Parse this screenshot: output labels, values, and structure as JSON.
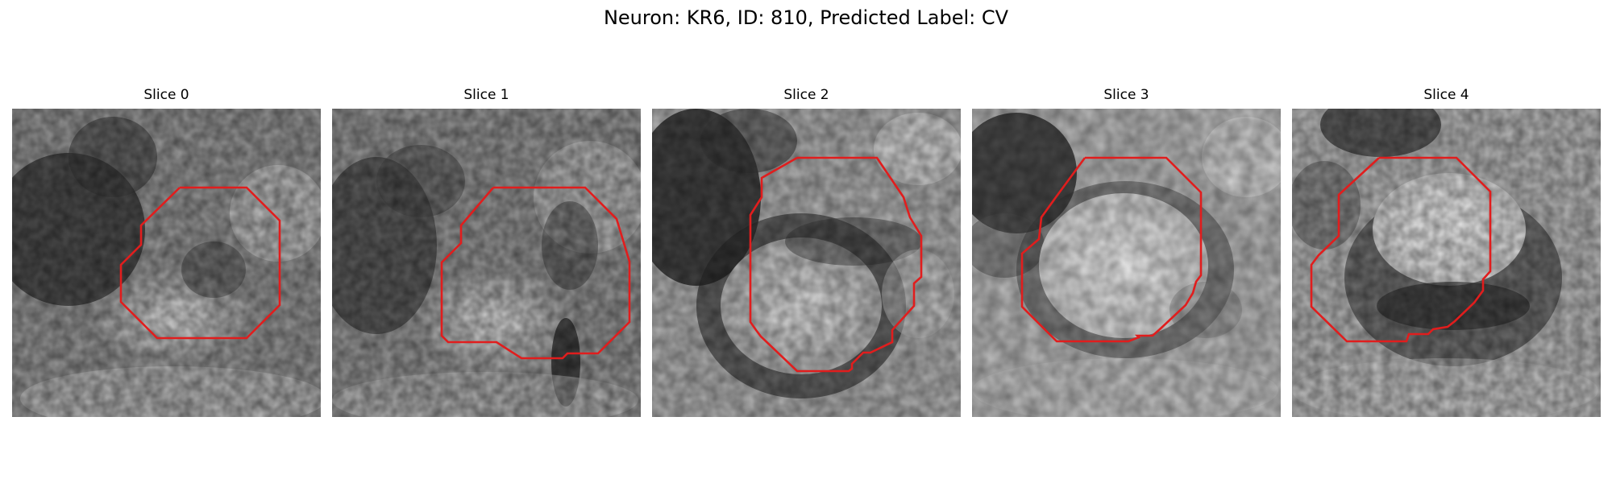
{
  "figure": {
    "suptitle": "Neuron: KR6, ID: 810, Predicted Label: CV"
  },
  "panels": [
    {
      "title": "Slice 0"
    },
    {
      "title": "Slice 1"
    },
    {
      "title": "Slice 2"
    },
    {
      "title": "Slice 3"
    },
    {
      "title": "Slice 4"
    }
  ],
  "style": {
    "contour_color": "#e11d1d",
    "background": "#ffffff"
  }
}
